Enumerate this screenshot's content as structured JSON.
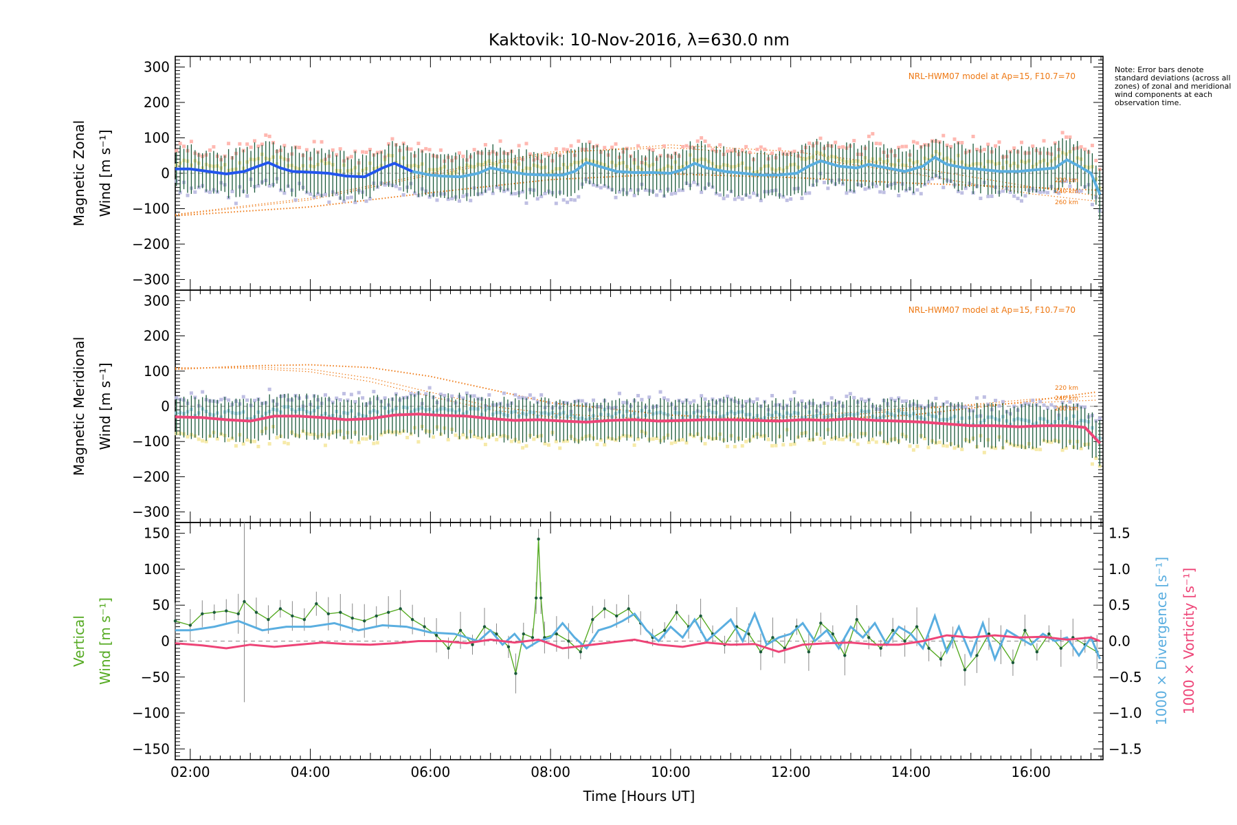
{
  "chart_data": [
    {
      "type": "line",
      "panel": "zonal",
      "title": "Kaktovik: 10-Nov-2016, λ=630.0 nm",
      "ylabel_line1": "Magnetic Zonal",
      "ylabel_line2": "Wind [m s⁻¹]",
      "ylim": [
        -330,
        330
      ],
      "xlim": [
        1.75,
        17.2
      ],
      "yticks": [
        "300",
        "200",
        "100",
        "0",
        "−100",
        "−200",
        "−300"
      ],
      "model_label": "NRL-HWM07 model at Ap=15, F10.7=70",
      "altitude_labels": [
        "220 km",
        "240 km",
        "260 km"
      ],
      "series": [
        {
          "role": "average wind",
          "color": "#2255ee",
          "color_daytime": "#5aaee0",
          "x": [
            1.75,
            2.0,
            2.3,
            2.6,
            2.9,
            3.1,
            3.3,
            3.5,
            3.7,
            4.0,
            4.3,
            4.6,
            4.9,
            5.2,
            5.4,
            5.7,
            6.0,
            6.2,
            6.5,
            6.8,
            7.0,
            7.3,
            7.6,
            7.9,
            8.2,
            8.4,
            8.6,
            8.8,
            9.1,
            9.4,
            9.7,
            10.0,
            10.2,
            10.4,
            10.6,
            10.9,
            11.2,
            11.5,
            11.8,
            12.1,
            12.3,
            12.5,
            12.8,
            13.1,
            13.3,
            13.6,
            13.9,
            14.2,
            14.4,
            14.6,
            14.9,
            15.2,
            15.5,
            15.8,
            16.1,
            16.4,
            16.6,
            16.8,
            17.0,
            17.15
          ],
          "y": [
            12,
            12,
            5,
            -2,
            5,
            18,
            30,
            15,
            5,
            3,
            0,
            -8,
            -10,
            15,
            28,
            5,
            -5,
            -8,
            -10,
            0,
            15,
            5,
            -3,
            -5,
            -5,
            5,
            30,
            20,
            5,
            2,
            2,
            0,
            10,
            28,
            15,
            5,
            0,
            -5,
            -5,
            0,
            20,
            35,
            20,
            15,
            25,
            15,
            5,
            20,
            45,
            25,
            15,
            10,
            5,
            5,
            10,
            15,
            38,
            20,
            0,
            -60
          ]
        },
        {
          "role": "error bars (standard deviation)",
          "color": "#1a5a3a",
          "half_width": 60
        },
        {
          "role": "zone samples",
          "colors": [
            "#ffb0a8",
            "#b8b8e0",
            "#f5e8a0"
          ]
        },
        {
          "role": "NRL-HWM07 model",
          "color": "#ee7711",
          "curves": [
            {
              "label": "220 km",
              "x": [
                1.75,
                4.0,
                6.0,
                8.0,
                10.0,
                12.0,
                14.0,
                16.0,
                17.15
              ],
              "y": [
                -120,
                -95,
                -55,
                -18,
                -2,
                -12,
                -28,
                -40,
                -48
              ]
            },
            {
              "label": "240 km",
              "x": [
                1.75,
                4.0,
                6.0,
                8.0,
                10.0,
                12.0,
                14.0,
                16.0,
                17.15
              ],
              "y": [
                -118,
                -75,
                -5,
                55,
                80,
                62,
                18,
                -38,
                -64
              ]
            },
            {
              "label": "260 km",
              "x": [
                1.75,
                4.0,
                6.0,
                8.0,
                10.0,
                12.0,
                14.0,
                16.0,
                17.15
              ],
              "y": [
                -116,
                -70,
                0,
                60,
                72,
                50,
                0,
                -58,
                -80
              ]
            }
          ]
        }
      ]
    },
    {
      "type": "line",
      "panel": "meridional",
      "ylabel_line1": "Magnetic Meridional",
      "ylabel_line2": "Wind [m s⁻¹]",
      "ylim": [
        -330,
        330
      ],
      "xlim": [
        1.75,
        17.2
      ],
      "yticks": [
        "300",
        "200",
        "100",
        "0",
        "−100",
        "−200",
        "−300"
      ],
      "model_label": "NRL-HWM07 model at Ap=15, F10.7=70",
      "altitude_labels": [
        "220 km",
        "240 km",
        "260 km"
      ],
      "series": [
        {
          "role": "average wind",
          "color": "#ee4477",
          "x": [
            1.75,
            2.2,
            2.6,
            3.0,
            3.4,
            3.8,
            4.2,
            4.6,
            5.0,
            5.4,
            5.8,
            6.2,
            6.6,
            7.0,
            7.4,
            7.8,
            8.2,
            8.6,
            9.0,
            9.4,
            9.8,
            10.2,
            10.6,
            11.0,
            11.4,
            11.8,
            12.2,
            12.6,
            13.0,
            13.4,
            13.8,
            14.2,
            14.6,
            15.0,
            15.4,
            15.8,
            16.2,
            16.6,
            16.9,
            17.15
          ],
          "y": [
            -30,
            -32,
            -38,
            -42,
            -28,
            -28,
            -32,
            -38,
            -35,
            -25,
            -22,
            -26,
            -28,
            -35,
            -40,
            -38,
            -42,
            -45,
            -40,
            -38,
            -42,
            -40,
            -38,
            -38,
            -40,
            -42,
            -38,
            -40,
            -35,
            -40,
            -42,
            -45,
            -50,
            -55,
            -55,
            -58,
            -55,
            -55,
            -60,
            -105
          ]
        },
        {
          "role": "error bars (standard deviation)",
          "color": "#1a5a3a",
          "half_width": 55
        },
        {
          "role": "zone samples",
          "colors": [
            "#b8b8e0",
            "#f5e8a0",
            "#a8d8ee"
          ]
        },
        {
          "role": "NRL-HWM07 model",
          "color": "#ee7711",
          "curves": [
            {
              "label": "220 km",
              "x": [
                1.75,
                3.0,
                4.0,
                5.0,
                6.0,
                7.0,
                8.0,
                10.0,
                12.0,
                14.0,
                16.0,
                17.15
              ],
              "y": [
                105,
                115,
                118,
                110,
                85,
                48,
                10,
                -25,
                -40,
                -25,
                15,
                42
              ]
            },
            {
              "label": "240 km",
              "x": [
                1.75,
                3.0,
                4.0,
                5.0,
                6.0,
                7.0,
                8.0,
                10.0,
                12.0,
                14.0,
                16.0,
                17.15
              ],
              "y": [
                108,
                112,
                105,
                80,
                40,
                0,
                -20,
                -40,
                -38,
                -10,
                20,
                30
              ]
            },
            {
              "label": "260 km",
              "x": [
                1.75,
                3.0,
                4.0,
                5.0,
                6.0,
                7.0,
                8.0,
                10.0,
                12.0,
                14.0,
                16.0,
                17.15
              ],
              "y": [
                110,
                108,
                98,
                70,
                28,
                -10,
                -30,
                -45,
                -30,
                -5,
                10,
                18
              ]
            }
          ]
        }
      ]
    },
    {
      "type": "line",
      "panel": "vertical",
      "xlabel": "Time [Hours UT]",
      "xticks": [
        "02:00",
        "04:00",
        "06:00",
        "08:00",
        "10:00",
        "12:00",
        "14:00",
        "16:00"
      ],
      "xtick_values": [
        2,
        4,
        6,
        8,
        10,
        12,
        14,
        16
      ],
      "ylabel_line1": "Vertical",
      "ylabel_line2": "Wind [m s⁻¹]",
      "ylim": [
        -165,
        165
      ],
      "yticks": [
        "150",
        "100",
        "50",
        "0",
        "−50",
        "−100",
        "−150"
      ],
      "y2label_div": "1000 × Divergence [s⁻¹]",
      "y2label_vort": "1000 × Vorticity [s⁻¹]",
      "y2lim": [
        -1.65,
        1.65
      ],
      "y2ticks": [
        "1.5",
        "1.0",
        "0.5",
        "0.0",
        "−0.5",
        "−1.0",
        "−1.5"
      ],
      "series": [
        {
          "name": "Vertical wind",
          "color": "#55aa22",
          "x": [
            1.75,
            2.0,
            2.2,
            2.4,
            2.6,
            2.8,
            2.9,
            3.1,
            3.3,
            3.5,
            3.7,
            3.9,
            4.1,
            4.3,
            4.5,
            4.7,
            4.9,
            5.1,
            5.3,
            5.5,
            5.7,
            5.9,
            6.1,
            6.3,
            6.5,
            6.7,
            6.9,
            7.1,
            7.3,
            7.42,
            7.55,
            7.7,
            7.76,
            7.8,
            7.84,
            7.9,
            8.1,
            8.3,
            8.5,
            8.7,
            8.9,
            9.1,
            9.3,
            9.5,
            9.7,
            9.9,
            10.1,
            10.3,
            10.5,
            10.7,
            10.9,
            11.1,
            11.3,
            11.5,
            11.7,
            11.9,
            12.1,
            12.3,
            12.5,
            12.7,
            12.9,
            13.1,
            13.3,
            13.5,
            13.7,
            13.9,
            14.1,
            14.3,
            14.5,
            14.7,
            14.9,
            15.1,
            15.3,
            15.5,
            15.7,
            15.9,
            16.1,
            16.3,
            16.5,
            16.7,
            16.9,
            17.1
          ],
          "y": [
            28,
            22,
            38,
            40,
            42,
            38,
            55,
            40,
            30,
            45,
            35,
            30,
            52,
            38,
            40,
            32,
            28,
            35,
            40,
            45,
            30,
            20,
            8,
            -10,
            15,
            -5,
            20,
            10,
            -8,
            -45,
            10,
            5,
            60,
            142,
            60,
            5,
            10,
            0,
            -15,
            30,
            45,
            35,
            45,
            25,
            5,
            15,
            40,
            20,
            35,
            10,
            -5,
            20,
            10,
            -15,
            5,
            -10,
            20,
            -15,
            25,
            10,
            -20,
            30,
            5,
            -10,
            15,
            0,
            20,
            -10,
            -25,
            5,
            -40,
            -20,
            10,
            -5,
            -30,
            15,
            -15,
            10,
            -10,
            5,
            -5,
            -15
          ]
        },
        {
          "name": "1000 × Divergence",
          "color": "#5aaee0",
          "x": [
            1.75,
            2.0,
            2.4,
            2.8,
            3.2,
            3.6,
            4.0,
            4.4,
            4.8,
            5.2,
            5.6,
            6.0,
            6.4,
            6.8,
            7.0,
            7.2,
            7.4,
            7.6,
            7.8,
            8.0,
            8.2,
            8.4,
            8.6,
            8.8,
            9.0,
            9.2,
            9.4,
            9.6,
            9.8,
            10.0,
            10.2,
            10.4,
            10.6,
            10.8,
            11.0,
            11.2,
            11.4,
            11.6,
            11.8,
            12.0,
            12.2,
            12.4,
            12.6,
            12.8,
            13.0,
            13.2,
            13.4,
            13.6,
            13.8,
            14.0,
            14.2,
            14.4,
            14.6,
            14.8,
            15.0,
            15.2,
            15.4,
            15.6,
            15.8,
            16.0,
            16.2,
            16.4,
            16.6,
            16.8,
            17.0,
            17.15
          ],
          "y": [
            0.15,
            0.15,
            0.2,
            0.28,
            0.15,
            0.2,
            0.2,
            0.25,
            0.15,
            0.22,
            0.2,
            0.12,
            0.1,
            0.0,
            0.15,
            -0.05,
            0.1,
            -0.1,
            0.0,
            0.05,
            0.25,
            0.05,
            -0.1,
            0.15,
            0.2,
            0.28,
            0.38,
            0.15,
            0.0,
            0.2,
            0.05,
            0.3,
            0.0,
            0.15,
            0.3,
            0.0,
            0.38,
            -0.05,
            0.05,
            0.1,
            0.25,
            0.0,
            0.15,
            -0.1,
            0.2,
            0.05,
            0.25,
            -0.05,
            0.2,
            0.1,
            -0.1,
            0.35,
            -0.15,
            0.2,
            -0.2,
            0.25,
            -0.25,
            0.15,
            0.05,
            -0.05,
            0.1,
            0.0,
            0.05,
            -0.2,
            0.05,
            -0.25
          ]
        },
        {
          "name": "1000 × Vorticity",
          "color": "#ee4477",
          "x": [
            1.75,
            2.2,
            2.6,
            3.0,
            3.4,
            3.8,
            4.2,
            4.6,
            5.0,
            5.4,
            5.8,
            6.2,
            6.6,
            7.0,
            7.4,
            7.8,
            8.2,
            8.6,
            9.0,
            9.4,
            9.8,
            10.2,
            10.6,
            11.0,
            11.4,
            11.8,
            12.2,
            12.6,
            13.0,
            13.4,
            13.8,
            14.2,
            14.6,
            15.0,
            15.4,
            15.8,
            16.2,
            16.6,
            17.0,
            17.15
          ],
          "y": [
            -0.03,
            -0.06,
            -0.1,
            -0.05,
            -0.08,
            -0.05,
            -0.02,
            -0.04,
            -0.05,
            -0.03,
            0.0,
            0.0,
            -0.03,
            0.02,
            -0.02,
            0.02,
            -0.1,
            -0.06,
            -0.02,
            0.02,
            -0.05,
            -0.08,
            -0.02,
            -0.05,
            -0.04,
            -0.15,
            -0.05,
            -0.03,
            -0.02,
            -0.05,
            -0.05,
            0.0,
            0.08,
            0.05,
            0.08,
            0.05,
            0.06,
            0.02,
            0.05,
            0.0
          ]
        }
      ]
    }
  ],
  "note": "Note: Error bars denote standard deviations (across all zones) of zonal and meridional wind components at each observation time.",
  "colors": {
    "axis": "#000000",
    "model": "#ee7711",
    "errorbar": "#1a5a3a",
    "zonal_line": "#2255ee",
    "divergence": "#5aaee0",
    "vorticity": "#ee4477",
    "vertical": "#55aa22"
  }
}
